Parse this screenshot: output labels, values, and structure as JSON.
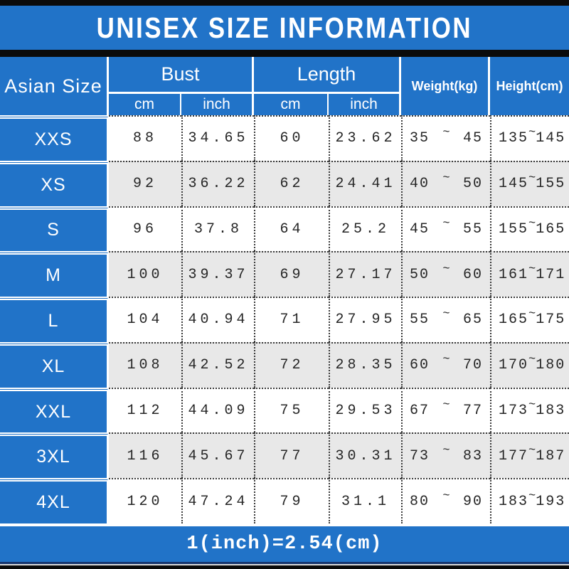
{
  "title": "UNISEX SIZE INFORMATION",
  "footer_note": "1(inch)=2.54(cm)",
  "range_separator": "~",
  "colors": {
    "header_blue": "#2173c8",
    "alt_row_gray": "#e8e8e8",
    "frame_black": "#0b0b0b",
    "navy_line": "#16356e",
    "data_text": "#262626"
  },
  "table": {
    "corner_header": "Asian Size",
    "group_headers": [
      {
        "label": "Bust",
        "subs": [
          "cm",
          "inch"
        ]
      },
      {
        "label": "Length",
        "subs": [
          "cm",
          "inch"
        ]
      }
    ],
    "scalar_headers": [
      "Weight(kg)",
      "Height(cm)"
    ],
    "rows": [
      {
        "size": "XXS",
        "bust_cm": "88",
        "bust_inch": "34.65",
        "len_cm": "60",
        "len_inch": "23.62",
        "w_min": "35",
        "w_max": "45",
        "h_min": "135",
        "h_max": "145"
      },
      {
        "size": "XS",
        "bust_cm": "92",
        "bust_inch": "36.22",
        "len_cm": "62",
        "len_inch": "24.41",
        "w_min": "40",
        "w_max": "50",
        "h_min": "145",
        "h_max": "155"
      },
      {
        "size": "S",
        "bust_cm": "96",
        "bust_inch": "37.8",
        "len_cm": "64",
        "len_inch": "25.2",
        "w_min": "45",
        "w_max": "55",
        "h_min": "155",
        "h_max": "165"
      },
      {
        "size": "M",
        "bust_cm": "100",
        "bust_inch": "39.37",
        "len_cm": "69",
        "len_inch": "27.17",
        "w_min": "50",
        "w_max": "60",
        "h_min": "161",
        "h_max": "171"
      },
      {
        "size": "L",
        "bust_cm": "104",
        "bust_inch": "40.94",
        "len_cm": "71",
        "len_inch": "27.95",
        "w_min": "55",
        "w_max": "65",
        "h_min": "165",
        "h_max": "175"
      },
      {
        "size": "XL",
        "bust_cm": "108",
        "bust_inch": "42.52",
        "len_cm": "72",
        "len_inch": "28.35",
        "w_min": "60",
        "w_max": "70",
        "h_min": "170",
        "h_max": "180"
      },
      {
        "size": "XXL",
        "bust_cm": "112",
        "bust_inch": "44.09",
        "len_cm": "75",
        "len_inch": "29.53",
        "w_min": "67",
        "w_max": "77",
        "h_min": "173",
        "h_max": "183"
      },
      {
        "size": "3XL",
        "bust_cm": "116",
        "bust_inch": "45.67",
        "len_cm": "77",
        "len_inch": "30.31",
        "w_min": "73",
        "w_max": "83",
        "h_min": "177",
        "h_max": "187"
      },
      {
        "size": "4XL",
        "bust_cm": "120",
        "bust_inch": "47.24",
        "len_cm": "79",
        "len_inch": "31.1",
        "w_min": "80",
        "w_max": "90",
        "h_min": "183",
        "h_max": "193"
      }
    ]
  },
  "chart_data": {
    "type": "table",
    "title": "UNISEX SIZE INFORMATION",
    "columns": [
      "Asian Size",
      "Bust (cm)",
      "Bust (inch)",
      "Length (cm)",
      "Length (inch)",
      "Weight (kg)",
      "Height (cm)"
    ],
    "rows": [
      [
        "XXS",
        88,
        34.65,
        60,
        23.62,
        "35~45",
        "135~145"
      ],
      [
        "XS",
        92,
        36.22,
        62,
        24.41,
        "40~50",
        "145~155"
      ],
      [
        "S",
        96,
        37.8,
        64,
        25.2,
        "45~55",
        "155~165"
      ],
      [
        "M",
        100,
        39.37,
        69,
        27.17,
        "50~60",
        "161~171"
      ],
      [
        "L",
        104,
        40.94,
        71,
        27.95,
        "55~65",
        "165~175"
      ],
      [
        "XL",
        108,
        42.52,
        72,
        28.35,
        "60~70",
        "170~180"
      ],
      [
        "XXL",
        112,
        44.09,
        75,
        29.53,
        "67~77",
        "173~183"
      ],
      [
        "3XL",
        116,
        45.67,
        77,
        30.31,
        "73~83",
        "177~187"
      ],
      [
        "4XL",
        120,
        47.24,
        79,
        31.1,
        "80~90",
        "183~193"
      ]
    ],
    "note": "1(inch)=2.54(cm)"
  }
}
